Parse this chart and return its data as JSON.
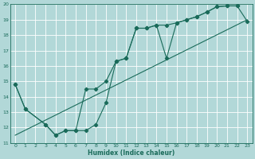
{
  "xlabel": "Humidex (Indice chaleur)",
  "xlim": [
    -0.5,
    23.5
  ],
  "ylim": [
    11,
    20
  ],
  "xticks": [
    0,
    1,
    2,
    3,
    4,
    5,
    6,
    7,
    8,
    9,
    10,
    11,
    12,
    13,
    14,
    15,
    16,
    17,
    18,
    19,
    20,
    21,
    22,
    23
  ],
  "yticks": [
    11,
    12,
    13,
    14,
    15,
    16,
    17,
    18,
    19,
    20
  ],
  "bg_color": "#b2d8d8",
  "grid_color": "#ffffff",
  "line_color": "#1a6b5a",
  "line1_x": [
    0,
    1,
    3,
    4,
    5,
    6,
    7,
    8,
    9,
    10,
    11,
    12,
    13,
    14,
    15,
    16,
    17,
    18,
    19,
    20,
    21,
    22
  ],
  "line1_y": [
    14.8,
    13.2,
    12.2,
    11.5,
    11.8,
    11.8,
    11.8,
    12.2,
    13.6,
    16.3,
    16.5,
    18.45,
    18.45,
    18.65,
    18.65,
    18.8,
    19.0,
    19.2,
    19.5,
    19.85,
    19.9,
    19.9
  ],
  "line2_x": [
    0,
    1,
    3,
    4,
    5,
    6,
    7,
    8,
    9,
    10,
    11,
    12,
    13,
    14,
    15,
    16,
    17,
    18,
    19,
    20,
    21,
    22,
    23
  ],
  "line2_y": [
    14.8,
    13.2,
    12.2,
    11.5,
    11.8,
    11.8,
    14.5,
    14.5,
    15.0,
    16.3,
    16.5,
    18.45,
    18.45,
    18.65,
    16.5,
    18.8,
    19.0,
    19.2,
    19.5,
    19.85,
    19.9,
    19.9,
    18.9
  ],
  "line3_x": [
    0,
    23
  ],
  "line3_y": [
    11.5,
    19.0
  ]
}
